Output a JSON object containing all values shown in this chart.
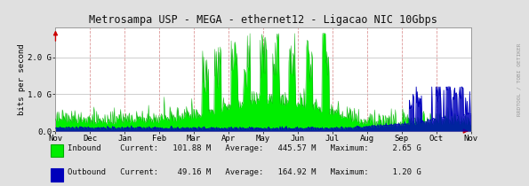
{
  "title": "Metrosampa USP - MEGA - ethernet12 - Ligacao NIC 10Gbps",
  "ylabel": "bits per second",
  "bg_color": "#e0e0e0",
  "plot_bg_color": "#ffffff",
  "inbound_fill": "#00ee00",
  "inbound_line": "#00aa00",
  "outbound_line": "#0000bb",
  "outbound_fill": "#0000bb",
  "x_labels": [
    "Nov",
    "Dec",
    "Jan",
    "Feb",
    "Mar",
    "Apr",
    "May",
    "Jun",
    "Jul",
    "Aug",
    "Sep",
    "Oct",
    "Nov"
  ],
  "y_ticks": [
    0.0,
    1.0,
    2.0
  ],
  "y_labels": [
    "0.0",
    "1.0 G",
    "2.0 G"
  ],
  "ylim": [
    0,
    2.8
  ],
  "legend_line1": "Inbound    Current:   101.88 M   Average:   445.57 M   Maximum:     2.65 G",
  "legend_line2": "Outbound   Current:    49.16 M   Average:   164.92 M   Maximum:     1.20 G",
  "watermark": "RRDTOOL / TOBI OETIKER",
  "arrow_color": "#cc0000",
  "vline_color": "#dd9999",
  "hline_color": "#bbbbbb"
}
